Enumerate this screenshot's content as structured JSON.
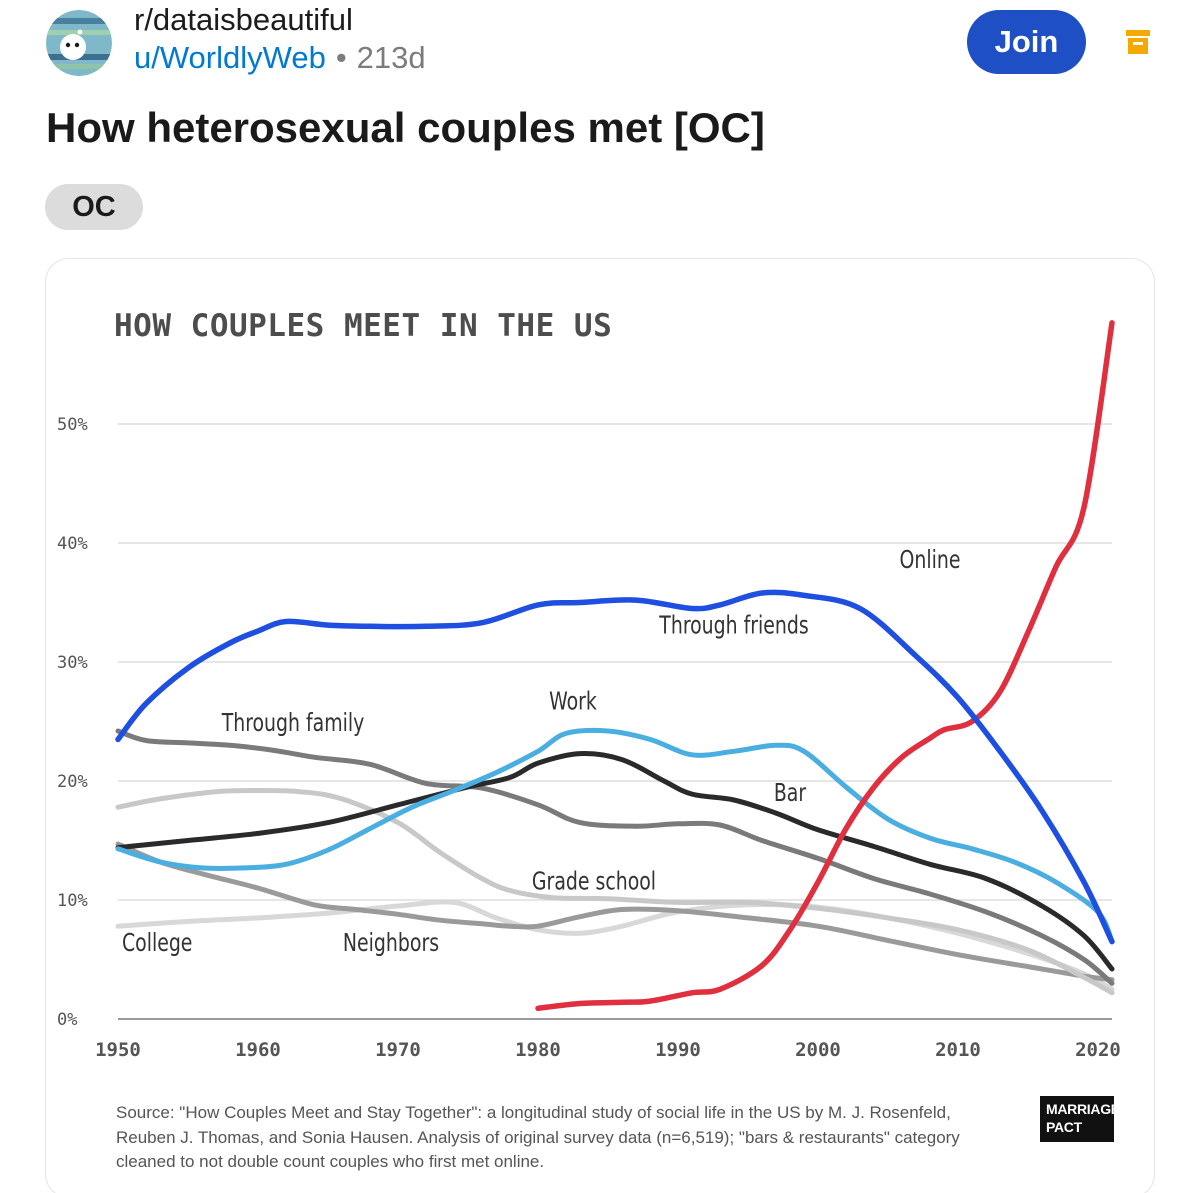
{
  "post": {
    "subreddit": "r/dataisbeautiful",
    "user": "u/WorldlyWeb",
    "separator": "•",
    "age": "213d",
    "join_label": "Join",
    "title": "How heterosexual couples met [OC]",
    "flair": "OC"
  },
  "colors": {
    "join_button": "#1f4fc4",
    "user_link": "#0079d3",
    "archive_icon": "#f5a800"
  },
  "icons": {
    "avatar": "subreddit-avatar-icon",
    "archive": "archive-icon"
  },
  "chart_data": {
    "type": "line",
    "title": "HOW COUPLES MEET IN THE US",
    "xlabel": "",
    "ylabel": "",
    "xlim": [
      1950,
      2021
    ],
    "ylim": [
      0,
      50
    ],
    "x_ticks": [
      1950,
      1960,
      1970,
      1980,
      1990,
      2000,
      2010,
      2020
    ],
    "y_ticks": [
      "0%",
      "10%",
      "20%",
      "30%",
      "40%",
      "50%"
    ],
    "y_tick_values": [
      0,
      10,
      20,
      30,
      40,
      50
    ],
    "grid": true,
    "legend": "inline labels",
    "series": [
      {
        "name": "Through friends",
        "color": "#1f4fe0",
        "width": 5.5,
        "label_at": [
          1994,
          32.4
        ],
        "x": [
          1950,
          1952,
          1955,
          1958,
          1960,
          1962,
          1965,
          1968,
          1972,
          1976,
          1980,
          1983,
          1987,
          1991,
          1993,
          1996,
          1999,
          2003,
          2007,
          2010,
          2013,
          2016,
          2019,
          2021
        ],
        "y": [
          23.5,
          26.5,
          29.5,
          31.6,
          32.6,
          33.4,
          33.1,
          33.0,
          33.0,
          33.3,
          34.8,
          35.0,
          35.2,
          34.5,
          34.8,
          35.8,
          35.6,
          34.5,
          30.5,
          27.0,
          22.5,
          17.5,
          11.5,
          6.5
        ]
      },
      {
        "name": "Online",
        "color": "#e03040",
        "width": 5.5,
        "label_at": [
          2008,
          37.9
        ],
        "x": [
          1980,
          1983,
          1986,
          1988,
          1991,
          1993,
          1996,
          1998,
          2000,
          2002,
          2004,
          2006,
          2008,
          2009,
          2011,
          2013,
          2015,
          2017,
          2019,
          2021
        ],
        "y": [
          0.9,
          1.3,
          1.4,
          1.5,
          2.2,
          2.5,
          4.5,
          7.5,
          11.5,
          16.0,
          19.5,
          22.0,
          23.6,
          24.3,
          25.0,
          27.5,
          32.5,
          38.0,
          43.0,
          58.5
        ]
      },
      {
        "name": "Work",
        "color": "#4aaee0",
        "width": 5,
        "label_at": [
          1982.5,
          26.0
        ],
        "x": [
          1950,
          1953,
          1956,
          1959,
          1962,
          1965,
          1968,
          1971,
          1974,
          1977,
          1980,
          1982,
          1985,
          1988,
          1991,
          1994,
          1997,
          1999,
          2002,
          2005,
          2008,
          2011,
          2014,
          2017,
          2020,
          2021
        ],
        "y": [
          14.3,
          13.2,
          12.7,
          12.7,
          13.0,
          14.2,
          16.0,
          17.8,
          19.2,
          20.7,
          22.5,
          24.0,
          24.2,
          23.5,
          22.2,
          22.5,
          23.0,
          22.5,
          19.5,
          16.8,
          15.2,
          14.3,
          13.2,
          11.5,
          9.0,
          6.5
        ]
      },
      {
        "name": "Bar",
        "color": "#2a2a2a",
        "width": 5,
        "label_at": [
          1998,
          18.3
        ],
        "x": [
          1950,
          1955,
          1960,
          1965,
          1970,
          1975,
          1978,
          1980,
          1983,
          1986,
          1989,
          1991,
          1994,
          1997,
          2000,
          2004,
          2008,
          2012,
          2016,
          2019,
          2021
        ],
        "y": [
          14.4,
          15.0,
          15.6,
          16.5,
          18.0,
          19.5,
          20.3,
          21.5,
          22.3,
          21.8,
          20.0,
          18.9,
          18.4,
          17.3,
          15.9,
          14.5,
          13.0,
          11.8,
          9.5,
          7.0,
          4.2
        ]
      },
      {
        "name": "Through family",
        "color": "#7a7a7a",
        "width": 5,
        "label_at": [
          1962.5,
          24.2
        ],
        "x": [
          1950,
          1952,
          1955,
          1958,
          1961,
          1964,
          1968,
          1972,
          1976,
          1980,
          1983,
          1987,
          1990,
          1993,
          1996,
          2000,
          2004,
          2008,
          2012,
          2016,
          2019,
          2021
        ],
        "y": [
          24.2,
          23.4,
          23.2,
          23.0,
          22.6,
          22.0,
          21.4,
          19.8,
          19.4,
          18.0,
          16.5,
          16.2,
          16.4,
          16.3,
          15.0,
          13.5,
          11.8,
          10.5,
          9.0,
          7.0,
          5.0,
          3.0
        ]
      },
      {
        "name": "Grade school",
        "color": "#c8c8c8",
        "width": 5,
        "label_at": [
          1984,
          10.9
        ],
        "x": [
          1950,
          1953,
          1957,
          1960,
          1963,
          1966,
          1970,
          1973,
          1976,
          1978,
          1981,
          1985,
          1990,
          1995,
          2000,
          2005,
          2010,
          2015,
          2019,
          2021
        ],
        "y": [
          17.8,
          18.5,
          19.1,
          19.2,
          19.1,
          18.5,
          16.5,
          14.0,
          11.8,
          10.8,
          10.2,
          10.1,
          9.8,
          9.8,
          9.3,
          8.5,
          7.5,
          5.8,
          3.5,
          2.2
        ]
      },
      {
        "name": "Neighbors",
        "color": "#9a9a9a",
        "width": 5,
        "label_at": [
          1969.5,
          5.7
        ],
        "x": [
          1950,
          1953,
          1956,
          1960,
          1964,
          1967,
          1970,
          1973,
          1976,
          1978,
          1980,
          1983,
          1986,
          1990,
          1995,
          2000,
          2005,
          2010,
          2015,
          2019,
          2021
        ],
        "y": [
          14.7,
          13.2,
          12.2,
          11.0,
          9.6,
          9.2,
          8.8,
          8.3,
          8.0,
          7.8,
          7.8,
          8.6,
          9.2,
          9.1,
          8.5,
          7.8,
          6.6,
          5.4,
          4.4,
          3.6,
          3.3
        ]
      },
      {
        "name": "College",
        "color": "#d8d8d8",
        "width": 5,
        "label_at": [
          1952.8,
          5.7
        ],
        "x": [
          1950,
          1955,
          1960,
          1965,
          1970,
          1974,
          1977,
          1980,
          1983,
          1986,
          1990,
          1995,
          2000,
          2005,
          2010,
          2015,
          2019,
          2021
        ],
        "y": [
          7.8,
          8.2,
          8.5,
          8.9,
          9.5,
          9.8,
          8.5,
          7.5,
          7.2,
          7.8,
          9.0,
          9.6,
          9.4,
          8.5,
          7.2,
          5.5,
          3.8,
          2.5
        ]
      }
    ],
    "source": "Source: \"How Couples Meet and Stay Together\": a longitudinal study of social life in the US by M. J. Rosenfeld, Reuben J. Thomas, and Sonia Hausen. Analysis of original survey data (n=6,519); \"bars & restaurants\" category cleaned to not double count couples who first met online.",
    "logo_line1": "MARRIAGE",
    "logo_line2": "PACT"
  }
}
